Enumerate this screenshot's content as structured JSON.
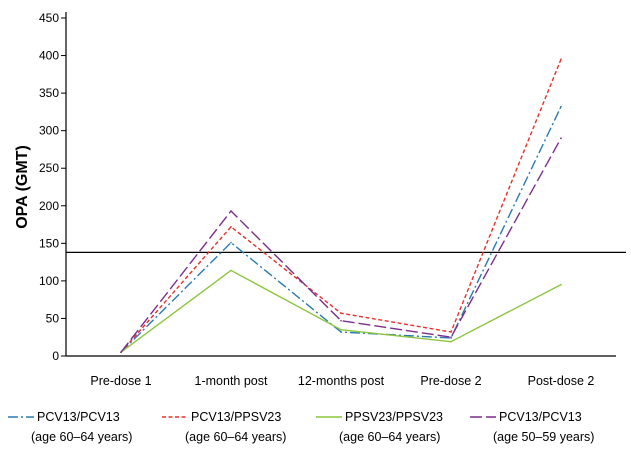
{
  "chart_data": {
    "type": "line",
    "title": "",
    "xlabel": "",
    "ylabel": "OPA (GMT)",
    "ylim": [
      0,
      450
    ],
    "yticks": [
      0,
      50,
      100,
      150,
      200,
      250,
      300,
      350,
      400,
      450
    ],
    "categories": [
      "Pre-dose 1",
      "1-month post",
      "12-months post",
      "Pre-dose 2",
      "Post-dose 2"
    ],
    "reference_line": 138,
    "grid": false,
    "legend_position": "bottom",
    "series": [
      {
        "name": "PCV13/PCV13",
        "subtitle": "(age 60–64 years)",
        "color": "#2a7ab0",
        "dash": "long-dash-dot",
        "values": [
          5,
          151,
          32,
          24,
          332
        ]
      },
      {
        "name": "PCV13/PPSV23",
        "subtitle": "(age 60–64 years)",
        "color": "#e8302a",
        "dash": "short-dash",
        "values": [
          5,
          172,
          57,
          32,
          395
        ]
      },
      {
        "name": "PPSV23/PPSV23",
        "subtitle": "(age 60–64 years)",
        "color": "#8cc63f",
        "dash": "solid",
        "values": [
          5,
          114,
          35,
          19,
          95
        ]
      },
      {
        "name": "PCV13/PCV13",
        "subtitle": "(age 50–59 years)",
        "color": "#7b2d8e",
        "dash": "long-dash",
        "values": [
          5,
          193,
          47,
          25,
          290
        ]
      }
    ]
  }
}
